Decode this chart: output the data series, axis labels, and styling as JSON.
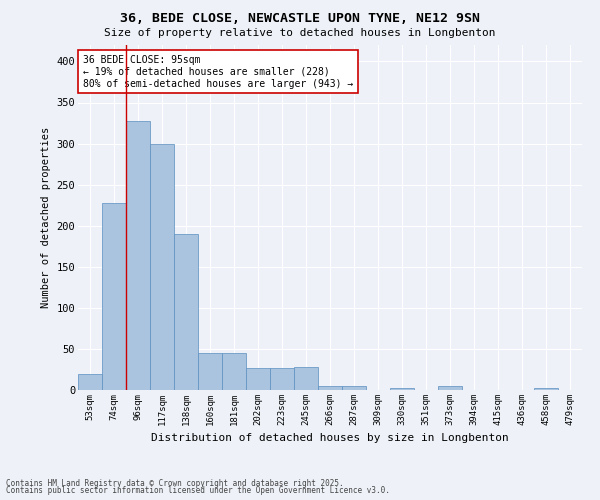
{
  "title1": "36, BEDE CLOSE, NEWCASTLE UPON TYNE, NE12 9SN",
  "title2": "Size of property relative to detached houses in Longbenton",
  "xlabel": "Distribution of detached houses by size in Longbenton",
  "ylabel": "Number of detached properties",
  "categories": [
    "53sqm",
    "74sqm",
    "96sqm",
    "117sqm",
    "138sqm",
    "160sqm",
    "181sqm",
    "202sqm",
    "223sqm",
    "245sqm",
    "266sqm",
    "287sqm",
    "309sqm",
    "330sqm",
    "351sqm",
    "373sqm",
    "394sqm",
    "415sqm",
    "436sqm",
    "458sqm",
    "479sqm"
  ],
  "values": [
    20,
    228,
    328,
    300,
    190,
    45,
    45,
    27,
    27,
    28,
    5,
    5,
    0,
    3,
    0,
    5,
    0,
    0,
    0,
    2,
    0
  ],
  "bar_color": "#aac4e0",
  "bar_edge_color": "#5a8fc0",
  "red_line_x": 1.5,
  "annotation_line1": "36 BEDE CLOSE: 95sqm",
  "annotation_line2": "← 19% of detached houses are smaller (228)",
  "annotation_line3": "80% of semi-detached houses are larger (943) →",
  "annotation_box_color": "#ffffff",
  "annotation_box_edge": "#cc0000",
  "annotation_text_color": "#000000",
  "footer1": "Contains HM Land Registry data © Crown copyright and database right 2025.",
  "footer2": "Contains public sector information licensed under the Open Government Licence v3.0.",
  "bg_color": "#eef2f8",
  "grid_color": "#ffffff",
  "ylim": [
    0,
    420
  ],
  "yticks": [
    0,
    50,
    100,
    150,
    200,
    250,
    300,
    350,
    400
  ]
}
